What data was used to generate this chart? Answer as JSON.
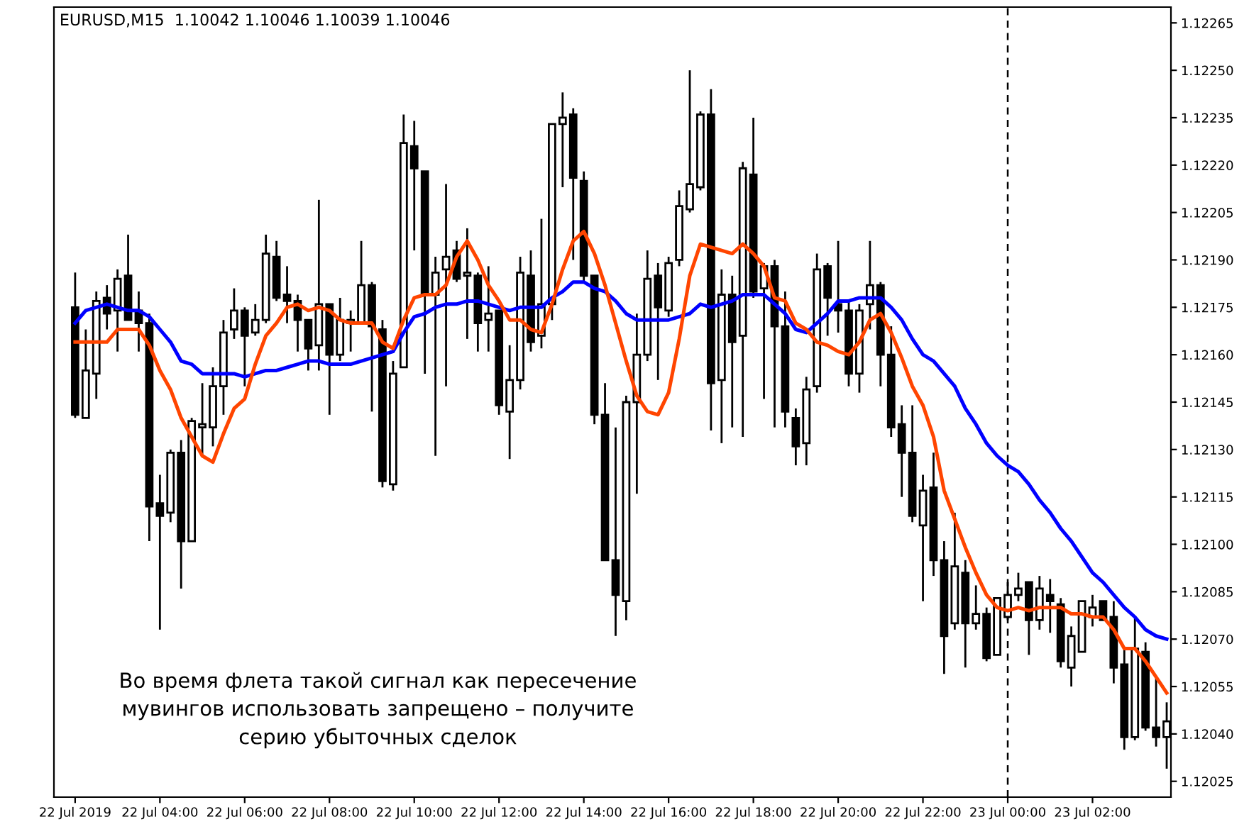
{
  "chart_data": {
    "type": "candlestick",
    "title": "EURUSD,M15  1.10042 1.10046 1.10039 1.10046",
    "x": [
      "2019-07-22T02:00",
      "2019-07-22T02:15",
      "2019-07-22T02:30",
      "2019-07-22T02:45",
      "2019-07-22T03:00",
      "2019-07-22T03:15",
      "2019-07-22T03:30",
      "2019-07-22T03:45",
      "2019-07-22T04:00",
      "2019-07-22T04:15",
      "2019-07-22T04:30",
      "2019-07-22T04:45",
      "2019-07-22T05:00",
      "2019-07-22T05:15",
      "2019-07-22T05:30",
      "2019-07-22T05:45",
      "2019-07-22T06:00",
      "2019-07-22T06:15",
      "2019-07-22T06:30",
      "2019-07-22T06:45",
      "2019-07-22T07:00",
      "2019-07-22T07:15",
      "2019-07-22T07:30",
      "2019-07-22T07:45",
      "2019-07-22T08:00",
      "2019-07-22T08:15",
      "2019-07-22T08:30",
      "2019-07-22T08:45",
      "2019-07-22T09:00",
      "2019-07-22T09:15",
      "2019-07-22T09:30",
      "2019-07-22T09:45",
      "2019-07-22T10:00",
      "2019-07-22T10:15",
      "2019-07-22T10:30",
      "2019-07-22T10:45",
      "2019-07-22T11:00",
      "2019-07-22T11:15",
      "2019-07-22T11:30",
      "2019-07-22T11:45",
      "2019-07-22T12:00",
      "2019-07-22T12:15",
      "2019-07-22T12:30",
      "2019-07-22T12:45",
      "2019-07-22T13:00",
      "2019-07-22T13:15",
      "2019-07-22T13:30",
      "2019-07-22T13:45",
      "2019-07-22T14:00",
      "2019-07-22T14:15",
      "2019-07-22T14:30",
      "2019-07-22T14:45",
      "2019-07-22T15:00",
      "2019-07-22T15:15",
      "2019-07-22T15:30",
      "2019-07-22T15:45",
      "2019-07-22T16:00",
      "2019-07-22T16:15",
      "2019-07-22T16:30",
      "2019-07-22T16:45",
      "2019-07-22T17:00",
      "2019-07-22T17:15",
      "2019-07-22T17:30",
      "2019-07-22T17:45",
      "2019-07-22T18:00",
      "2019-07-22T18:15",
      "2019-07-22T18:30",
      "2019-07-22T18:45",
      "2019-07-22T19:00",
      "2019-07-22T19:15",
      "2019-07-22T19:30",
      "2019-07-22T19:45",
      "2019-07-22T20:00",
      "2019-07-22T20:15",
      "2019-07-22T20:30",
      "2019-07-22T20:45",
      "2019-07-22T21:00",
      "2019-07-22T21:15",
      "2019-07-22T21:30",
      "2019-07-22T21:45",
      "2019-07-22T22:00",
      "2019-07-22T22:15",
      "2019-07-22T22:30",
      "2019-07-22T22:45",
      "2019-07-22T23:00",
      "2019-07-22T23:15",
      "2019-07-22T23:30",
      "2019-07-22T23:45",
      "2019-07-23T00:00",
      "2019-07-23T00:15",
      "2019-07-23T00:30",
      "2019-07-23T00:45",
      "2019-07-23T01:00",
      "2019-07-23T01:15",
      "2019-07-23T01:30",
      "2019-07-23T01:45",
      "2019-07-23T02:00",
      "2019-07-23T02:15",
      "2019-07-23T02:30",
      "2019-07-23T02:45",
      "2019-07-23T03:00",
      "2019-07-23T03:15",
      "2019-07-23T03:30",
      "2019-07-23T03:45"
    ],
    "ohlc": [
      [
        1.12175,
        1.12186,
        1.1214,
        1.12141
      ],
      [
        1.1214,
        1.12168,
        1.1214,
        1.12155
      ],
      [
        1.12154,
        1.1218,
        1.12146,
        1.12177
      ],
      [
        1.12178,
        1.12182,
        1.12168,
        1.12173
      ],
      [
        1.12174,
        1.12187,
        1.12161,
        1.12184
      ],
      [
        1.12185,
        1.12198,
        1.12171,
        1.12171
      ],
      [
        1.12174,
        1.1218,
        1.12161,
        1.1217
      ],
      [
        1.1217,
        1.12173,
        1.12101,
        1.12112
      ],
      [
        1.12113,
        1.12122,
        1.12073,
        1.12109
      ],
      [
        1.1211,
        1.1213,
        1.12107,
        1.12129
      ],
      [
        1.12129,
        1.12133,
        1.12086,
        1.12101
      ],
      [
        1.12101,
        1.1214,
        1.12101,
        1.12139
      ],
      [
        1.12137,
        1.12151,
        1.12128,
        1.12138
      ],
      [
        1.12137,
        1.12156,
        1.12131,
        1.1215
      ],
      [
        1.1215,
        1.12171,
        1.12141,
        1.12167
      ],
      [
        1.12168,
        1.12181,
        1.12165,
        1.12174
      ],
      [
        1.12174,
        1.12175,
        1.1215,
        1.12166
      ],
      [
        1.12167,
        1.12176,
        1.12166,
        1.12171
      ],
      [
        1.12171,
        1.12198,
        1.1217,
        1.12192
      ],
      [
        1.12191,
        1.12196,
        1.12177,
        1.12178
      ],
      [
        1.12179,
        1.12188,
        1.1217,
        1.12177
      ],
      [
        1.12177,
        1.12179,
        1.12161,
        1.12171
      ],
      [
        1.12171,
        1.12171,
        1.12155,
        1.12162
      ],
      [
        1.12163,
        1.12209,
        1.12155,
        1.12176
      ],
      [
        1.12176,
        1.12176,
        1.12141,
        1.1216
      ],
      [
        1.1216,
        1.12178,
        1.12158,
        1.12171
      ],
      [
        1.1217,
        1.12174,
        1.12161,
        1.12171
      ],
      [
        1.1217,
        1.12196,
        1.1217,
        1.12182
      ],
      [
        1.12182,
        1.12183,
        1.12142,
        1.12169
      ],
      [
        1.12168,
        1.12171,
        1.12118,
        1.1212
      ],
      [
        1.12119,
        1.12158,
        1.12117,
        1.12154
      ],
      [
        1.12156,
        1.12236,
        1.12156,
        1.12227
      ],
      [
        1.12226,
        1.12234,
        1.12193,
        1.12219
      ],
      [
        1.12218,
        1.12218,
        1.12154,
        1.12179
      ],
      [
        1.12179,
        1.12191,
        1.12128,
        1.12186
      ],
      [
        1.12187,
        1.12214,
        1.1215,
        1.12191
      ],
      [
        1.12193,
        1.12196,
        1.12183,
        1.12184
      ],
      [
        1.12185,
        1.122,
        1.12165,
        1.12186
      ],
      [
        1.12185,
        1.12186,
        1.12161,
        1.1217
      ],
      [
        1.12171,
        1.12188,
        1.12161,
        1.12173
      ],
      [
        1.12174,
        1.12174,
        1.12141,
        1.12144
      ],
      [
        1.12142,
        1.12163,
        1.12127,
        1.12152
      ],
      [
        1.12152,
        1.12191,
        1.12149,
        1.12186
      ],
      [
        1.12185,
        1.12193,
        1.12161,
        1.12164
      ],
      [
        1.12166,
        1.12203,
        1.12162,
        1.12176
      ],
      [
        1.12176,
        1.12233,
        1.12171,
        1.12233
      ],
      [
        1.12233,
        1.12243,
        1.12213,
        1.12235
      ],
      [
        1.12236,
        1.12238,
        1.1219,
        1.12216
      ],
      [
        1.12215,
        1.12218,
        1.12183,
        1.12185
      ],
      [
        1.12185,
        1.12185,
        1.12138,
        1.12141
      ],
      [
        1.12141,
        1.12151,
        1.12095,
        1.12095
      ],
      [
        1.12095,
        1.12137,
        1.12071,
        1.12084
      ],
      [
        1.12082,
        1.12147,
        1.12076,
        1.12145
      ],
      [
        1.12145,
        1.12173,
        1.12116,
        1.1216
      ],
      [
        1.1216,
        1.12193,
        1.12158,
        1.12184
      ],
      [
        1.12185,
        1.12189,
        1.12152,
        1.12175
      ],
      [
        1.12174,
        1.12191,
        1.12172,
        1.12189
      ],
      [
        1.1219,
        1.12212,
        1.12188,
        1.12207
      ],
      [
        1.12206,
        1.1225,
        1.12205,
        1.12214
      ],
      [
        1.12213,
        1.12237,
        1.12212,
        1.12236
      ],
      [
        1.12236,
        1.12244,
        1.12136,
        1.12151
      ],
      [
        1.12152,
        1.12187,
        1.12132,
        1.12179
      ],
      [
        1.12179,
        1.12185,
        1.12137,
        1.12164
      ],
      [
        1.12166,
        1.12221,
        1.12134,
        1.12219
      ],
      [
        1.12217,
        1.12235,
        1.12178,
        1.1218
      ],
      [
        1.12181,
        1.12189,
        1.12146,
        1.12188
      ],
      [
        1.12188,
        1.1219,
        1.12137,
        1.12169
      ],
      [
        1.12169,
        1.1218,
        1.12137,
        1.12142
      ],
      [
        1.1214,
        1.12143,
        1.12125,
        1.12131
      ],
      [
        1.12132,
        1.12153,
        1.12125,
        1.12149
      ],
      [
        1.1215,
        1.12192,
        1.12148,
        1.12187
      ],
      [
        1.12188,
        1.12189,
        1.12166,
        1.12178
      ],
      [
        1.12176,
        1.12196,
        1.12167,
        1.12174
      ],
      [
        1.12174,
        1.12177,
        1.1215,
        1.12154
      ],
      [
        1.12154,
        1.12176,
        1.12148,
        1.12174
      ],
      [
        1.12176,
        1.12196,
        1.12168,
        1.12182
      ],
      [
        1.12182,
        1.12183,
        1.1215,
        1.1216
      ],
      [
        1.1216,
        1.12169,
        1.12134,
        1.12137
      ],
      [
        1.12138,
        1.12144,
        1.12115,
        1.12129
      ],
      [
        1.12129,
        1.12144,
        1.12107,
        1.12109
      ],
      [
        1.12106,
        1.12122,
        1.12082,
        1.12117
      ],
      [
        1.12118,
        1.12129,
        1.1209,
        1.12095
      ],
      [
        1.12095,
        1.12101,
        1.12059,
        1.12071
      ],
      [
        1.12075,
        1.1211,
        1.12073,
        1.12093
      ],
      [
        1.12091,
        1.12095,
        1.12061,
        1.12075
      ],
      [
        1.12075,
        1.12087,
        1.12073,
        1.12078
      ],
      [
        1.12078,
        1.1208,
        1.12063,
        1.12064
      ],
      [
        1.12065,
        1.12083,
        1.12065,
        1.12083
      ],
      [
        1.12077,
        1.12088,
        1.12076,
        1.12084
      ],
      [
        1.12084,
        1.12091,
        1.12082,
        1.12086
      ],
      [
        1.12088,
        1.12088,
        1.12065,
        1.12076
      ],
      [
        1.12076,
        1.1209,
        1.12073,
        1.12086
      ],
      [
        1.12084,
        1.12089,
        1.12072,
        1.12082
      ],
      [
        1.12081,
        1.12083,
        1.12061,
        1.12063
      ],
      [
        1.12061,
        1.12074,
        1.12055,
        1.12071
      ],
      [
        1.12066,
        1.12082,
        1.12066,
        1.12082
      ],
      [
        1.12077,
        1.12084,
        1.12074,
        1.1208
      ],
      [
        1.12082,
        1.12082,
        1.12076,
        1.12076
      ],
      [
        1.12077,
        1.12082,
        1.12056,
        1.12061
      ],
      [
        1.12062,
        1.12067,
        1.12035,
        1.12039
      ],
      [
        1.12039,
        1.12077,
        1.12038,
        1.12067
      ],
      [
        1.12066,
        1.12069,
        1.12041,
        1.12042
      ],
      [
        1.12042,
        1.12058,
        1.12036,
        1.12039
      ],
      [
        1.12039,
        1.1205,
        1.12029,
        1.12044
      ]
    ],
    "series": [
      {
        "type": "line",
        "color": "#0000ff",
        "values": [
          1.1217,
          1.12174,
          1.12175,
          1.12176,
          1.12175,
          1.12174,
          1.12174,
          1.12172,
          1.12168,
          1.12164,
          1.12158,
          1.12157,
          1.12154,
          1.12154,
          1.12154,
          1.12154,
          1.12153,
          1.12154,
          1.12155,
          1.12155,
          1.12156,
          1.12157,
          1.12158,
          1.12158,
          1.12157,
          1.12157,
          1.12157,
          1.12158,
          1.12159,
          1.1216,
          1.12161,
          1.12167,
          1.12172,
          1.12173,
          1.12175,
          1.12176,
          1.12176,
          1.12177,
          1.12177,
          1.12176,
          1.12175,
          1.12174,
          1.12175,
          1.12175,
          1.12175,
          1.12178,
          1.1218,
          1.12183,
          1.12183,
          1.12181,
          1.1218,
          1.12177,
          1.12173,
          1.12171,
          1.12171,
          1.12171,
          1.12171,
          1.12172,
          1.12173,
          1.12176,
          1.12175,
          1.12176,
          1.12177,
          1.12179,
          1.12179,
          1.12179,
          1.12176,
          1.12173,
          1.12168,
          1.12167,
          1.1217,
          1.12173,
          1.12177,
          1.12177,
          1.12178,
          1.12178,
          1.12178,
          1.12175,
          1.12171,
          1.12165,
          1.1216,
          1.12158,
          1.12154,
          1.1215,
          1.12143,
          1.12138,
          1.12132,
          1.12128,
          1.12125,
          1.12123,
          1.12119,
          1.12114,
          1.1211,
          1.12105,
          1.12101,
          1.12096,
          1.12091,
          1.12088,
          1.12084,
          1.1208,
          1.12077,
          1.12073,
          1.12071,
          1.1207
        ]
      },
      {
        "type": "line",
        "color": "#ff4500",
        "values": [
          1.12164,
          1.12164,
          1.12164,
          1.12164,
          1.12168,
          1.12168,
          1.12168,
          1.12163,
          1.12155,
          1.12149,
          1.1214,
          1.12134,
          1.12128,
          1.12126,
          1.12135,
          1.12143,
          1.12146,
          1.12157,
          1.12166,
          1.1217,
          1.12175,
          1.12176,
          1.12174,
          1.12175,
          1.12174,
          1.12171,
          1.1217,
          1.1217,
          1.1217,
          1.12164,
          1.12162,
          1.12171,
          1.12178,
          1.12179,
          1.12179,
          1.12182,
          1.12191,
          1.12196,
          1.1219,
          1.12182,
          1.12177,
          1.12171,
          1.12171,
          1.12168,
          1.12167,
          1.12176,
          1.12187,
          1.12196,
          1.12199,
          1.12192,
          1.12182,
          1.1217,
          1.12158,
          1.12147,
          1.12142,
          1.12141,
          1.12148,
          1.12165,
          1.12185,
          1.12195,
          1.12194,
          1.12193,
          1.12192,
          1.12195,
          1.12192,
          1.12188,
          1.12178,
          1.12177,
          1.1217,
          1.12168,
          1.12164,
          1.12163,
          1.12161,
          1.1216,
          1.12164,
          1.12171,
          1.12173,
          1.12167,
          1.12159,
          1.1215,
          1.12144,
          1.12134,
          1.12117,
          1.12108,
          1.12099,
          1.12091,
          1.12084,
          1.1208,
          1.12079,
          1.1208,
          1.12079,
          1.1208,
          1.1208,
          1.1208,
          1.12078,
          1.12078,
          1.12077,
          1.12077,
          1.12073,
          1.12067,
          1.12067,
          1.12063,
          1.12058,
          1.12053
        ]
      }
    ],
    "xlim": [
      "2019-07-22T01:30",
      "2019-07-23T03:51"
    ],
    "xticks": [
      {
        "value": "2019-07-22T02:00",
        "label": "22 Jul 2019"
      },
      {
        "value": "2019-07-22T04:00",
        "label": "22 Jul 04:00"
      },
      {
        "value": "2019-07-22T06:00",
        "label": "22 Jul 06:00"
      },
      {
        "value": "2019-07-22T08:00",
        "label": "22 Jul 08:00"
      },
      {
        "value": "2019-07-22T10:00",
        "label": "22 Jul 10:00"
      },
      {
        "value": "2019-07-22T12:00",
        "label": "22 Jul 12:00"
      },
      {
        "value": "2019-07-22T14:00",
        "label": "22 Jul 14:00"
      },
      {
        "value": "2019-07-22T16:00",
        "label": "22 Jul 16:00"
      },
      {
        "value": "2019-07-22T18:00",
        "label": "22 Jul 18:00"
      },
      {
        "value": "2019-07-22T20:00",
        "label": "22 Jul 20:00"
      },
      {
        "value": "2019-07-22T22:00",
        "label": "22 Jul 22:00"
      },
      {
        "value": "2019-07-23T00:00",
        "label": "23 Jul 00:00"
      },
      {
        "value": "2019-07-23T02:00",
        "label": "23 Jul 02:00"
      }
    ],
    "ylim": [
      1.1202,
      1.1227
    ],
    "yticks": [
      {
        "value": 1.12025,
        "label": "1.12025"
      },
      {
        "value": 1.1204,
        "label": "1.12040"
      },
      {
        "value": 1.12055,
        "label": "1.12055"
      },
      {
        "value": 1.1207,
        "label": "1.12070"
      },
      {
        "value": 1.12085,
        "label": "1.12085"
      },
      {
        "value": 1.121,
        "label": "1.12100"
      },
      {
        "value": 1.12115,
        "label": "1.12115"
      },
      {
        "value": 1.1213,
        "label": "1.12130"
      },
      {
        "value": 1.12145,
        "label": "1.12145"
      },
      {
        "value": 1.1216,
        "label": "1.12160"
      },
      {
        "value": 1.12175,
        "label": "1.12175"
      },
      {
        "value": 1.1219,
        "label": "1.12190"
      },
      {
        "value": 1.12205,
        "label": "1.12205"
      },
      {
        "value": 1.1222,
        "label": "1.12220"
      },
      {
        "value": 1.12235,
        "label": "1.12235"
      },
      {
        "value": 1.1225,
        "label": "1.12250"
      },
      {
        "value": 1.12265,
        "label": "1.12265"
      }
    ],
    "ref_lines": [
      {
        "axis": "x",
        "value": "2019-07-23T00:00",
        "color": "#000000",
        "line_style": "dashed"
      }
    ],
    "annotations": [
      "Во время флета такой сигнал как пересечение\nмувингов использовать запрещено – получите\nсерию убыточных сделок"
    ]
  }
}
